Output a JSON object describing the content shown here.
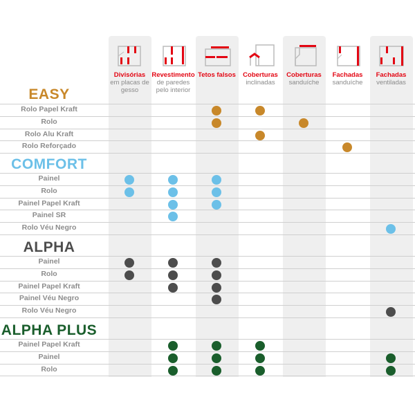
{
  "columns": [
    {
      "title": "Divisórias",
      "subtitle": "em placas de gesso",
      "icon": "partition-wall-icon",
      "shaded": true
    },
    {
      "title": "Revestimento",
      "subtitle": "de paredes pelo interior",
      "icon": "interior-wall-lining-icon",
      "shaded": false
    },
    {
      "title": "Tetos falsos",
      "subtitle": "",
      "icon": "false-ceiling-icon",
      "shaded": true
    },
    {
      "title": "Coberturas",
      "subtitle": "inclinadas",
      "icon": "pitched-roof-icon",
      "shaded": false
    },
    {
      "title": "Coberturas",
      "subtitle": "sanduíche",
      "icon": "sandwich-roof-icon",
      "shaded": true
    },
    {
      "title": "Fachadas",
      "subtitle": "sanduíche",
      "icon": "sandwich-facade-icon",
      "shaded": false
    },
    {
      "title": "Fachadas",
      "subtitle": "ventiladas",
      "icon": "ventilated-facade-icon",
      "shaded": true
    }
  ],
  "colors": {
    "accent_red": "#e30613",
    "EASY": "#c8882a",
    "COMFORT": "#6cc0e8",
    "ALPHA": "#4d4d4d",
    "ALPHA PLUS": "#1a5e2c"
  },
  "sections": [
    {
      "name": "EASY",
      "rows": [
        {
          "label": "Rolo Papel Kraft",
          "applications": [
            3,
            4
          ]
        },
        {
          "label": "Rolo",
          "applications": [
            3,
            5
          ]
        },
        {
          "label": "Rolo Alu Kraft",
          "applications": [
            4
          ]
        },
        {
          "label": "Rolo Reforçado",
          "applications": [
            6
          ]
        }
      ]
    },
    {
      "name": "COMFORT",
      "rows": [
        {
          "label": "Painel",
          "applications": [
            1,
            2,
            3
          ]
        },
        {
          "label": "Rolo",
          "applications": [
            1,
            2,
            3
          ]
        },
        {
          "label": "Painel Papel Kraft",
          "applications": [
            2,
            3
          ]
        },
        {
          "label": "Painel SR",
          "applications": [
            2
          ]
        },
        {
          "label": "Rolo Véu Negro",
          "applications": [
            7
          ]
        }
      ]
    },
    {
      "name": "ALPHA",
      "rows": [
        {
          "label": "Painel",
          "applications": [
            1,
            2,
            3
          ]
        },
        {
          "label": "Rolo",
          "applications": [
            1,
            2,
            3
          ]
        },
        {
          "label": "Painel Papel Kraft",
          "applications": [
            2,
            3
          ]
        },
        {
          "label": "Painel Véu Negro",
          "applications": [
            3
          ]
        },
        {
          "label": "Rolo Véu Negro",
          "applications": [
            7
          ]
        }
      ]
    },
    {
      "name": "ALPHA PLUS",
      "rows": [
        {
          "label": "Painel Papel Kraft",
          "applications": [
            2,
            3,
            4
          ]
        },
        {
          "label": "Painel",
          "applications": [
            2,
            3,
            4,
            7
          ]
        },
        {
          "label": "Rolo",
          "applications": [
            2,
            3,
            4,
            7
          ]
        }
      ]
    }
  ]
}
